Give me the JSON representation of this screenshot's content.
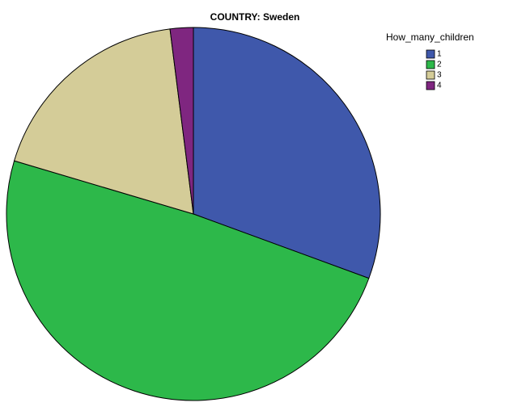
{
  "chart_data": {
    "type": "pie",
    "title": "COUNTRY: Sweden",
    "legend_title": "How_many_children",
    "categories": [
      "1",
      "2",
      "3",
      "4"
    ],
    "values": [
      30.6,
      49,
      18.4,
      2
    ],
    "colors": [
      "#3f58ab",
      "#2db84a",
      "#d4cc98",
      "#7f2680"
    ],
    "start_angle": 0,
    "direction": "clockwise",
    "legend": "top-right"
  }
}
